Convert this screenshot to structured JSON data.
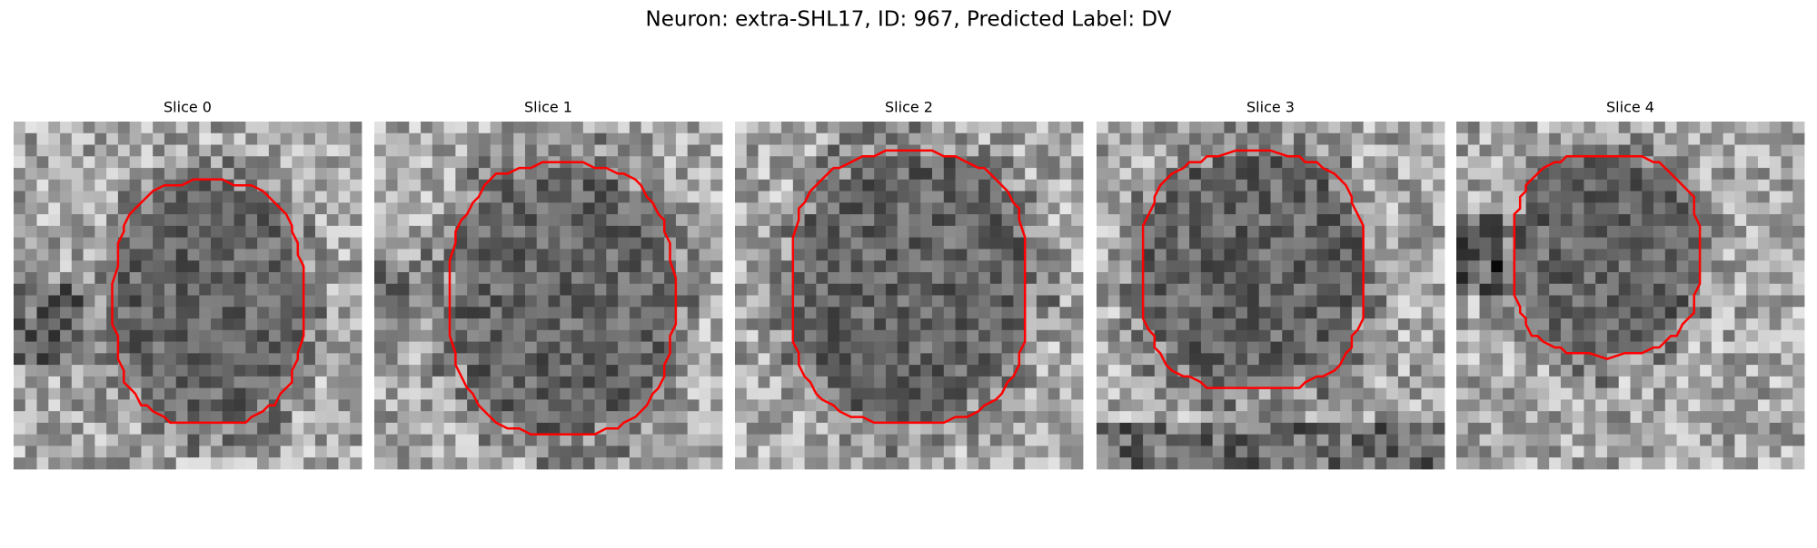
{
  "title": "Neuron: extra-SHL17, ID: 967, Predicted Label: DV",
  "panels": [
    {
      "title": "Slice 0"
    },
    {
      "title": "Slice 1"
    },
    {
      "title": "Slice 2"
    },
    {
      "title": "Slice 3"
    },
    {
      "title": "Slice 4"
    }
  ]
}
